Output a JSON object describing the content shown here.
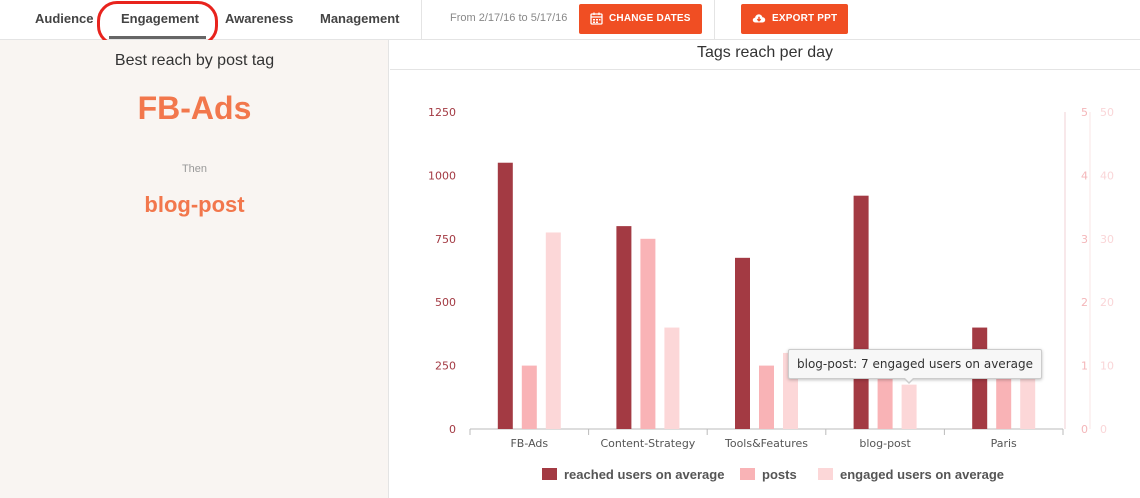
{
  "nav": {
    "tabs": [
      {
        "label": "Audience"
      },
      {
        "label": "Engagement",
        "active": true
      },
      {
        "label": "Awareness"
      },
      {
        "label": "Management"
      }
    ],
    "date_range": "From 2/17/16 to 5/17/16",
    "change_dates_label": "CHANGE DATES",
    "change_dates_icon": "calendar-icon",
    "export_label": "EXPORT PPT",
    "export_icon": "cloud-download-icon",
    "accent_color": "#f04e23",
    "annotation_color": "#e8231d"
  },
  "left_panel": {
    "title": "Best reach by post tag",
    "best_tag": "FB-Ads",
    "then_label": "Then",
    "second_tag": "blog-post",
    "highlight_color": "#f2774c"
  },
  "chart_panel": {
    "title": "Tags reach per day"
  },
  "tooltip": {
    "text": "blog-post: 7 engaged users on average"
  },
  "chart_data": {
    "type": "bar",
    "title": "Tags reach per day",
    "categories": [
      "FB-Ads",
      "Content-Strategy",
      "Tools&Features",
      "blog-post",
      "Paris"
    ],
    "series": [
      {
        "name": "reached users on average",
        "axis": "left",
        "color": "#a33a43",
        "values": [
          1050,
          800,
          675,
          920,
          400
        ]
      },
      {
        "name": "posts",
        "axis": "right1",
        "color": "#f9b3b6",
        "values": [
          1,
          3,
          1,
          1,
          1
        ]
      },
      {
        "name": "engaged users on average",
        "axis": "right2",
        "color": "#fcd7d8",
        "values": [
          31,
          16,
          12,
          7,
          8
        ]
      }
    ],
    "y_left": {
      "min": 0,
      "max": 1250,
      "ticks": [
        0,
        250,
        500,
        750,
        1000,
        1250
      ]
    },
    "y_right1": {
      "min": 0,
      "max": 5,
      "ticks": [
        0,
        1,
        2,
        3,
        4,
        5
      ]
    },
    "y_right2": {
      "min": 0,
      "max": 50,
      "ticks": [
        0,
        10,
        20,
        30,
        40,
        50
      ]
    },
    "grid": false,
    "legend_position": "bottom"
  }
}
